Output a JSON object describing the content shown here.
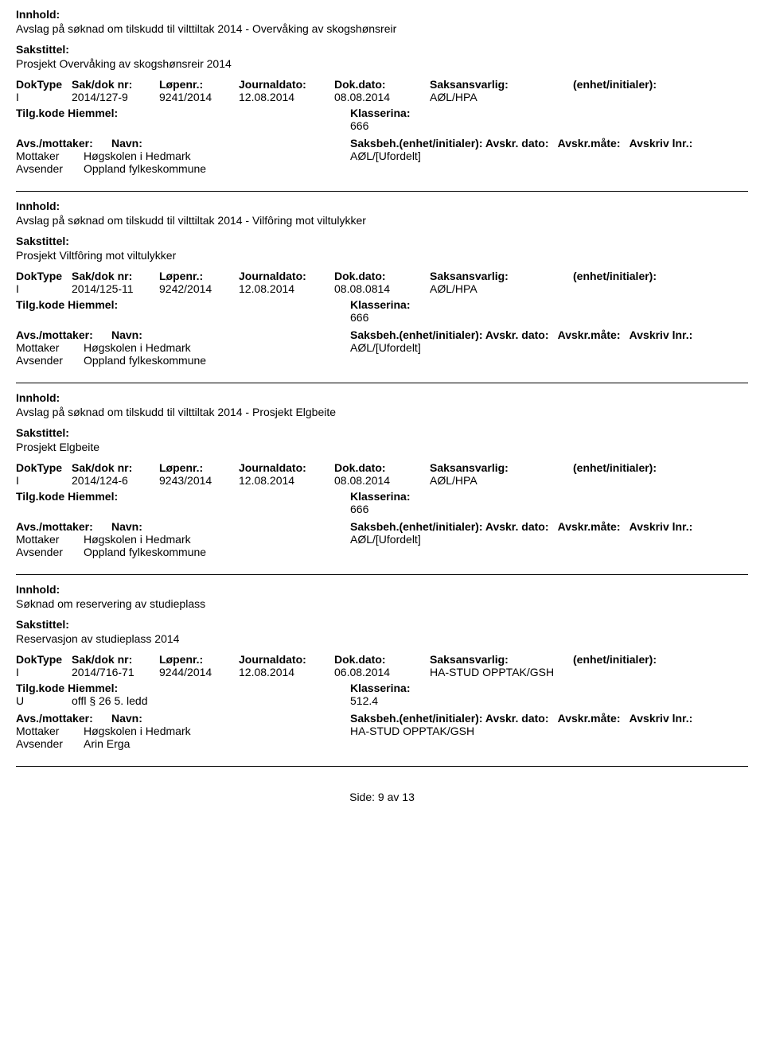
{
  "colors": {
    "text": "#000000",
    "background": "#ffffff",
    "divider": "#000000"
  },
  "labels": {
    "innhold": "Innhold:",
    "sakstittel": "Sakstittel:",
    "doktype": "DokType",
    "sakdok": "Sak/dok nr:",
    "lopenr": "Løpenr.:",
    "journaldato": "Journaldato:",
    "dokdato": "Dok.dato:",
    "saksansvarlig": "Saksansvarlig:",
    "enhet": "(enhet/initialer):",
    "tilg": "Tilg.kode",
    "hjemmel": "Hiemmel:",
    "klassering": "Klasserina:",
    "avsmot": "Avs./mottaker:",
    "navn": "Navn:",
    "saksbeh": "Saksbeh.(enhet/initialer):",
    "avskrdato": "Avskr. dato:",
    "avskrmate": "Avskr.måte:",
    "avskrivlnr": "Avskriv lnr.:",
    "mottaker": "Mottaker",
    "avsender": "Avsender"
  },
  "records": [
    {
      "innhold": "Avslag på søknad om tilskudd til vilttiltak 2014 - Overvåking av skogshønsreir",
      "sakstittel": "Prosjekt Overvåking av skogshønsreir 2014",
      "doktype": "I",
      "sakdok": "2014/127-9",
      "lopenr": "9241/2014",
      "journaldato": "12.08.2014",
      "dokdato": "08.08.2014",
      "saksansvarlig": "AØL/HPA",
      "enhet": "",
      "tilg": "",
      "hjemmel": "",
      "klassering": "666",
      "mottaker_navn": "Høgskolen i Hedmark",
      "mottaker_saksbeh": "AØL/[Ufordelt]",
      "avsender_navn": "Oppland fylkeskommune"
    },
    {
      "innhold": "Avslag på søknad om tilskudd til vilttiltak 2014 - Vilfôring mot viltulykker",
      "sakstittel": "Prosjekt Viltfôring mot viltulykker",
      "doktype": "I",
      "sakdok": "2014/125-11",
      "lopenr": "9242/2014",
      "journaldato": "12.08.2014",
      "dokdato": "08.08.0814",
      "saksansvarlig": "AØL/HPA",
      "enhet": "",
      "tilg": "",
      "hjemmel": "",
      "klassering": "666",
      "mottaker_navn": "Høgskolen i Hedmark",
      "mottaker_saksbeh": "AØL/[Ufordelt]",
      "avsender_navn": "Oppland fylkeskommune"
    },
    {
      "innhold": "Avslag på søknad om tilskudd til vilttiltak 2014 - Prosjekt Elgbeite",
      "sakstittel": "Prosjekt Elgbeite",
      "doktype": "I",
      "sakdok": "2014/124-6",
      "lopenr": "9243/2014",
      "journaldato": "12.08.2014",
      "dokdato": "08.08.2014",
      "saksansvarlig": "AØL/HPA",
      "enhet": "",
      "tilg": "",
      "hjemmel": "",
      "klassering": "666",
      "mottaker_navn": "Høgskolen i Hedmark",
      "mottaker_saksbeh": "AØL/[Ufordelt]",
      "avsender_navn": "Oppland fylkeskommune"
    },
    {
      "innhold": "Søknad om reservering av studieplass",
      "sakstittel": "Reservasjon av studieplass 2014",
      "doktype": "I",
      "sakdok": "2014/716-71",
      "lopenr": "9244/2014",
      "journaldato": "12.08.2014",
      "dokdato": "06.08.2014",
      "saksansvarlig": "HA-STUD OPPTAK/GSH",
      "enhet": "",
      "tilg": "U",
      "hjemmel": "offl § 26 5. ledd",
      "klassering": "512.4",
      "mottaker_navn": "Høgskolen i Hedmark",
      "mottaker_saksbeh": "HA-STUD OPPTAK/GSH",
      "avsender_navn": "Arin Erga"
    }
  ],
  "footer": {
    "prefix": "Side:",
    "page": "9",
    "of": "av",
    "total": "13"
  }
}
